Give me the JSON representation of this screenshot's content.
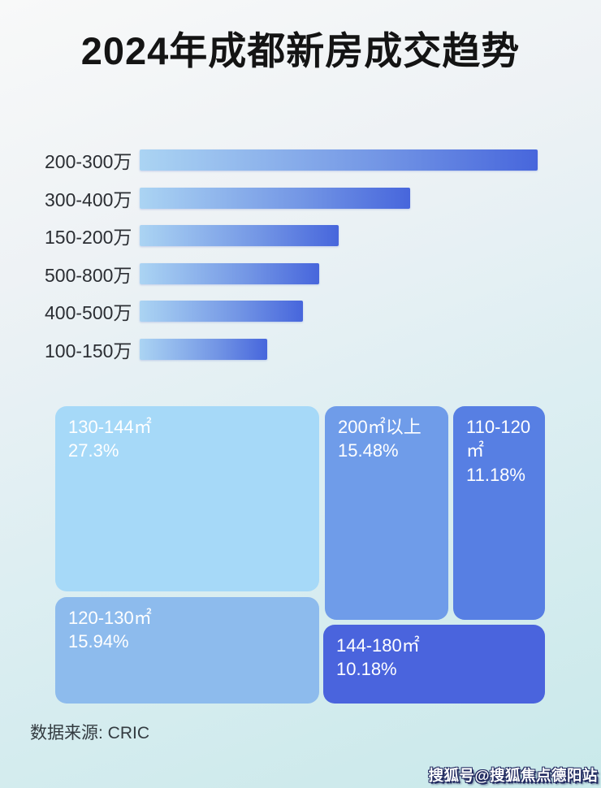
{
  "title": "2024年成都新房成交趋势",
  "footer": {
    "source_label": "数据来源: CRIC"
  },
  "watermark": "搜狐号@搜狐焦点德阳站",
  "colors": {
    "bar_gradient_start": "#abd4f3",
    "bar_gradient_end": "#4766dc",
    "treemap_boxes": [
      "#a6d9f8",
      "#8dbbed",
      "#6f9ce9",
      "#577fe3",
      "#4a64dd"
    ],
    "background_top": "#f8f9f9",
    "background_bottom": "#c9e9ea",
    "title_text": "#141414",
    "bar_label_text": "#2b2e33",
    "treemap_text": "#ffffff"
  },
  "chart_data": [
    {
      "type": "bar",
      "orientation": "horizontal",
      "title": "2024年成都新房成交趋势",
      "categories": [
        "200-300万",
        "300-400万",
        "150-200万",
        "500-800万",
        "400-500万",
        "100-150万"
      ],
      "values": [
        1.0,
        0.68,
        0.5,
        0.45,
        0.41,
        0.32
      ],
      "value_note": "relative bar lengths estimated from pixels; no numeric axis or data labels are shown",
      "xlabel": "",
      "ylabel": "",
      "grid": false,
      "legend": "none"
    },
    {
      "type": "treemap",
      "items": [
        {
          "label": "130-144㎡",
          "value": "27.3%"
        },
        {
          "label": "120-130㎡",
          "value": "15.94%"
        },
        {
          "label": "200㎡以上",
          "value": "15.48%"
        },
        {
          "label": "110-120㎡",
          "value": "11.18%"
        },
        {
          "label": "144-180㎡",
          "value": "10.18%"
        }
      ]
    }
  ]
}
